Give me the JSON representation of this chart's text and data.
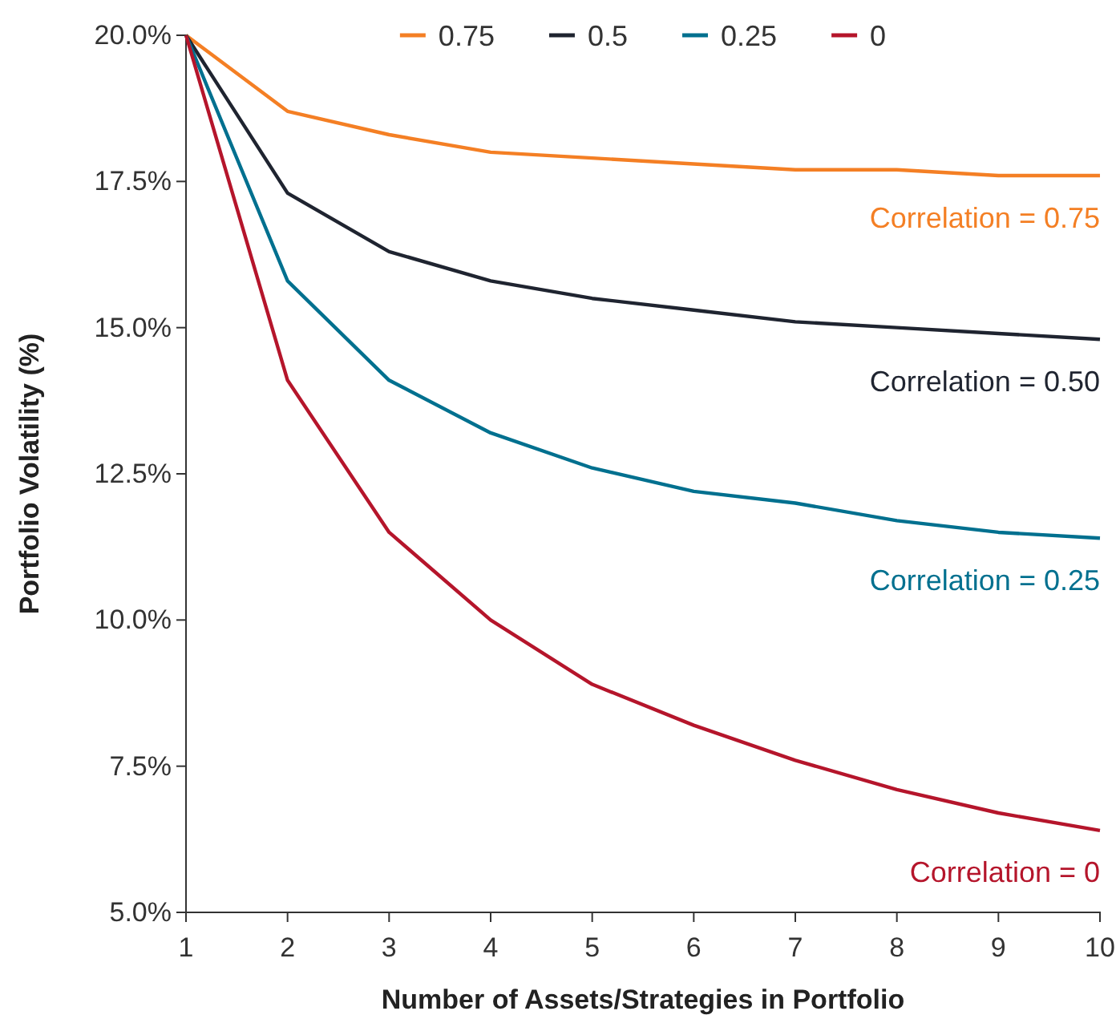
{
  "chart_data": {
    "type": "line",
    "xlabel": "Number of Assets/Strategies in Portfolio",
    "ylabel": "Portfolio Volatility (%)",
    "x": [
      1,
      2,
      3,
      4,
      5,
      6,
      7,
      8,
      9,
      10
    ],
    "series": [
      {
        "name": "0.75",
        "color": "#f47f24",
        "values": [
          20,
          18.7,
          18.3,
          18.0,
          17.9,
          17.8,
          17.7,
          17.7,
          17.6,
          17.6
        ]
      },
      {
        "name": "0.5",
        "color": "#1f2430",
        "values": [
          20,
          17.3,
          16.3,
          15.8,
          15.5,
          15.3,
          15.1,
          15.0,
          14.9,
          14.8
        ]
      },
      {
        "name": "0.25",
        "color": "#00708f",
        "values": [
          20,
          15.8,
          14.1,
          13.2,
          12.6,
          12.2,
          12.0,
          11.7,
          11.5,
          11.4
        ]
      },
      {
        "name": "0",
        "color": "#b5152b",
        "values": [
          20,
          14.1,
          11.5,
          10.0,
          8.9,
          8.2,
          7.6,
          7.1,
          6.7,
          6.4
        ]
      }
    ],
    "xlim": [
      1,
      10
    ],
    "xticks": [
      1,
      2,
      3,
      4,
      5,
      6,
      7,
      8,
      9,
      10
    ],
    "ylim": [
      5,
      20
    ],
    "yticks": [
      {
        "value": 5,
        "label": "5.0%"
      },
      {
        "value": 7.5,
        "label": "7.5%"
      },
      {
        "value": 10,
        "label": "10.0%"
      },
      {
        "value": 12.5,
        "label": "12.5%"
      },
      {
        "value": 15,
        "label": "15.0%"
      },
      {
        "value": 17.5,
        "label": "17.5%"
      },
      {
        "value": 20,
        "label": "20.0%"
      }
    ],
    "annotations": [
      "Correlation = 0.75",
      "Correlation = 0.50",
      "Correlation = 0.25",
      "Correlation = 0"
    ],
    "grid": false,
    "legend": "top",
    "marker": "none",
    "line_style": "solid"
  }
}
